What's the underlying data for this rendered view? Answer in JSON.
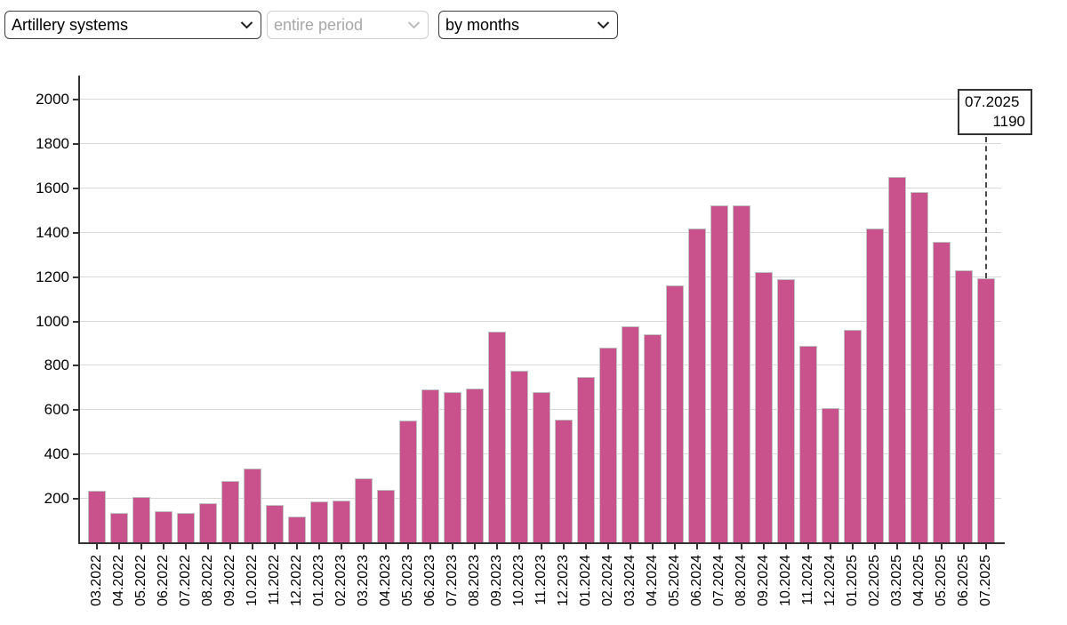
{
  "controls": {
    "weapon_select": {
      "value": "Artillery systems",
      "disabled": false
    },
    "period_select": {
      "value": "entire period",
      "disabled": true
    },
    "grouping_select": {
      "value": "by months",
      "disabled": false
    }
  },
  "chart_data": {
    "type": "bar",
    "categories": [
      "03.2022",
      "04.2022",
      "05.2022",
      "06.2022",
      "07.2022",
      "08.2022",
      "09.2022",
      "10.2022",
      "11.2022",
      "12.2022",
      "01.2023",
      "02.2023",
      "03.2023",
      "04.2023",
      "05.2023",
      "06.2023",
      "07.2023",
      "08.2023",
      "09.2023",
      "10.2023",
      "11.2023",
      "12.2023",
      "01.2024",
      "02.2024",
      "03.2024",
      "04.2024",
      "05.2024",
      "06.2024",
      "07.2024",
      "08.2024",
      "09.2024",
      "10.2024",
      "11.2024",
      "12.2024",
      "01.2025",
      "02.2025",
      "03.2025",
      "04.2025",
      "05.2025",
      "06.2025",
      "07.2025"
    ],
    "values": [
      231,
      131,
      205,
      139,
      131,
      178,
      277,
      333,
      170,
      117,
      184,
      188,
      290,
      238,
      550,
      688,
      678,
      692,
      948,
      772,
      678,
      553,
      747,
      878,
      974,
      938,
      1158,
      1415,
      1519,
      1519,
      1218,
      1186,
      886,
      605,
      958,
      1415,
      1647,
      1579,
      1355,
      1228,
      1190
    ],
    "yticks": [
      200,
      400,
      600,
      800,
      1000,
      1200,
      1400,
      1600,
      1800,
      2000
    ],
    "ylim": [
      0,
      2090
    ],
    "grid": true,
    "legend_position": "none",
    "bar_color": "#c9518c",
    "tooltip": {
      "label": "07.2025",
      "value": 1190
    }
  }
}
